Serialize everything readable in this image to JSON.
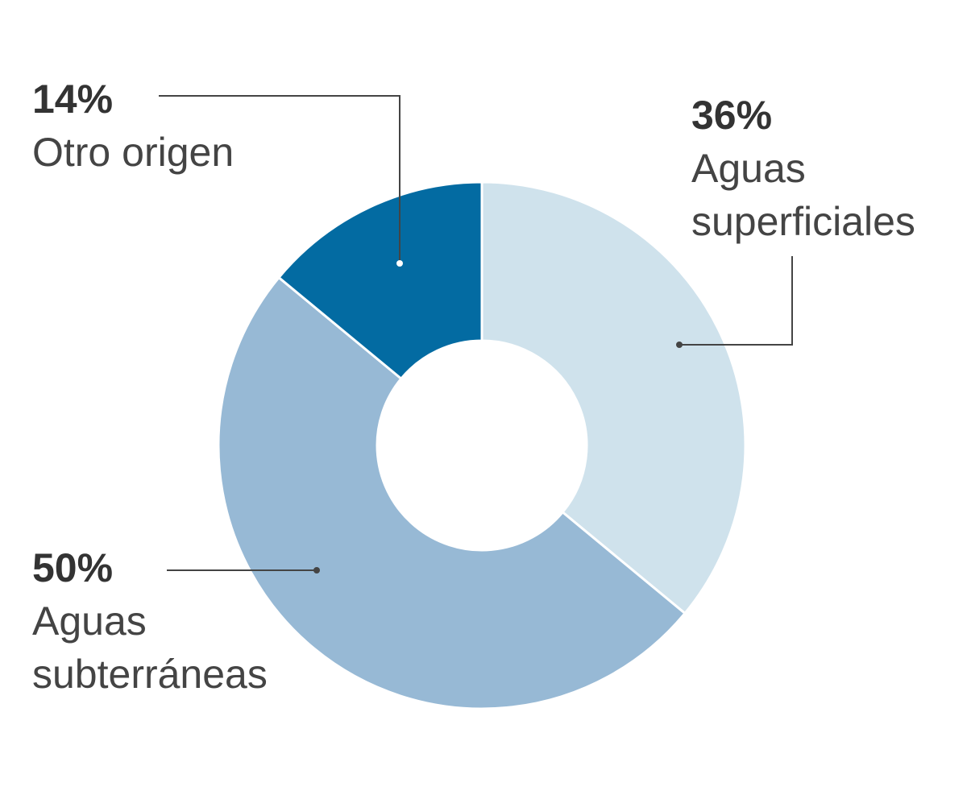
{
  "chart_data": {
    "type": "pie",
    "categories": [
      "Aguas superficiales",
      "Aguas subterráneas",
      "Otro origen"
    ],
    "values": [
      36,
      50,
      14
    ],
    "value_labels": [
      "36%",
      "50%",
      "14%"
    ],
    "colors": [
      "#cfe2ec",
      "#97b9d5",
      "#036ba2"
    ],
    "donut": true
  }
}
